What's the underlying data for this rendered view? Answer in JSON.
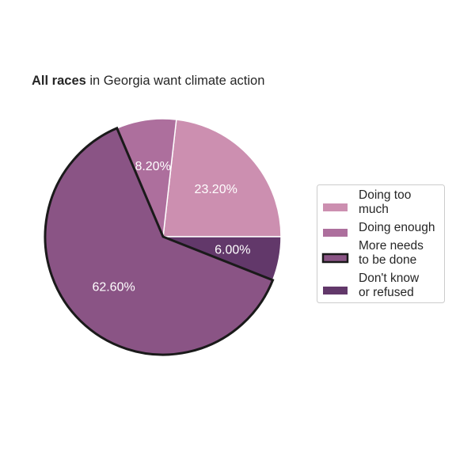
{
  "chart_data": {
    "type": "pie",
    "title": {
      "bold": "All races",
      "rest": " in Georgia want climate action"
    },
    "slices": [
      {
        "legend_label": [
          "Doing too",
          "much"
        ],
        "value": 23.2,
        "label": "23.20%",
        "color": "#cc8fb0",
        "highlight": false
      },
      {
        "legend_label": [
          "Doing enough"
        ],
        "value": 8.2,
        "label": "8.20%",
        "color": "#ad6f9d",
        "highlight": false
      },
      {
        "legend_label": [
          "More needs",
          "to be done"
        ],
        "value": 62.6,
        "label": "62.60%",
        "color": "#8a5485",
        "highlight": true
      },
      {
        "legend_label": [
          "Don't know",
          "or refused"
        ],
        "value": 6.0,
        "label": "6.00%",
        "color": "#62386a",
        "highlight": false
      }
    ],
    "start_angle_deg": 0,
    "direction": "counterclockwise",
    "legend_position": "right"
  }
}
